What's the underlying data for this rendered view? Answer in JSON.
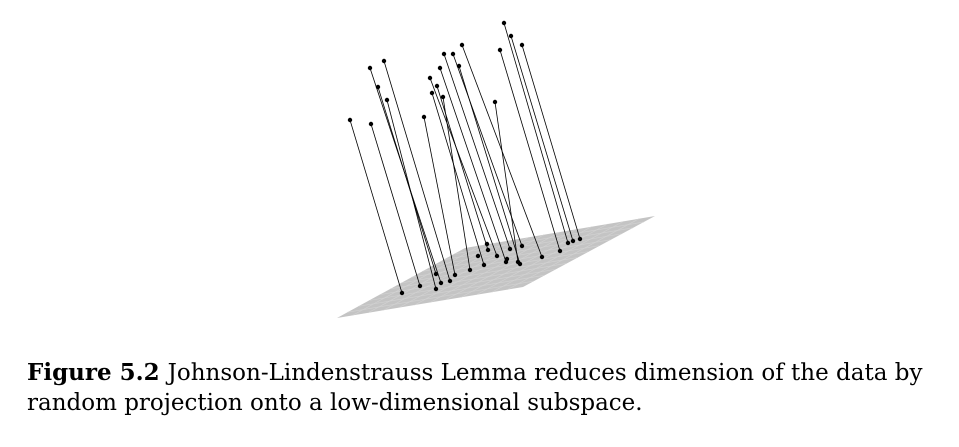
{
  "figure": {
    "label": "Figure 5.2",
    "caption": "Johnson-Lindenstrauss Lemma reduces dimension of the data by random projection onto a low-dimensional subspace."
  },
  "colors": {
    "plane": "#c4c4c4",
    "grid": "#d3d3d3",
    "ink": "#000000"
  }
}
